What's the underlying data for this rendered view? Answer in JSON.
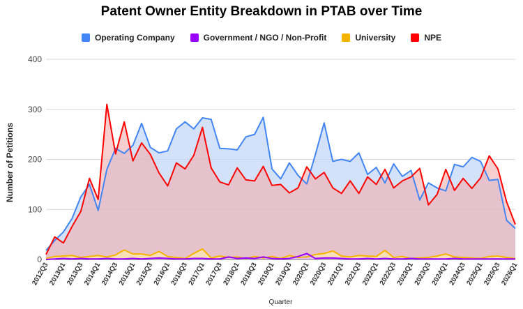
{
  "chart_data": {
    "type": "line",
    "title": "Patent Owner Entity Breakdown in PTAB over Time",
    "xlabel": "Quarter",
    "ylabel": "Number of Petitions",
    "ylim": [
      0,
      400
    ],
    "yticks": [
      0,
      100,
      200,
      300,
      400
    ],
    "grid": true,
    "legend_position": "top",
    "x": [
      "2012Q3",
      "2012Q4",
      "2013Q1",
      "2013Q2",
      "2013Q3",
      "2013Q4",
      "2014Q1",
      "2014Q2",
      "2014Q3",
      "2014Q4",
      "2015Q1",
      "2015Q2",
      "2015Q3",
      "2015Q4",
      "2016Q1",
      "2016Q2",
      "2016Q3",
      "2016Q4",
      "2017Q1",
      "2017Q2",
      "2017Q3",
      "2017Q4",
      "2018Q1",
      "2018Q2",
      "2018Q3",
      "2018Q4",
      "2019Q1",
      "2019Q2",
      "2019Q3",
      "2019Q4",
      "2020Q1",
      "2020Q2",
      "2020Q3",
      "2020Q4",
      "2021Q1",
      "2021Q2",
      "2021Q3",
      "2021Q4",
      "2022Q1",
      "2022Q2",
      "2022Q3",
      "2022Q4",
      "2023Q1",
      "2023Q2",
      "2023Q3",
      "2023Q4",
      "2024Q1",
      "2024Q2",
      "2024Q3",
      "2024Q4",
      "2025Q1",
      "2025Q2",
      "2025Q3",
      "2025Q4",
      "2026Q1"
    ],
    "x_tick_labels": [
      "2012Q3",
      "2013Q1",
      "2013Q3",
      "2014Q1",
      "2014Q3",
      "2015Q1",
      "2015Q3",
      "2016Q1",
      "2016Q3",
      "2017Q1",
      "2017Q3",
      "2018Q1",
      "2018Q3",
      "2019Q1",
      "2019Q3",
      "2020Q1",
      "2020Q3",
      "2021Q1",
      "2021Q3",
      "2022Q1",
      "2022Q3",
      "2023Q1",
      "2023Q3",
      "2024Q1",
      "2024Q3",
      "2025Q1",
      "2025Q3",
      "2026Q1"
    ],
    "series": [
      {
        "name": "Operating Company",
        "color": "#4285f4",
        "fill": "#c6d8f7",
        "values": [
          18,
          38,
          55,
          82,
          125,
          150,
          98,
          180,
          222,
          212,
          228,
          272,
          224,
          213,
          217,
          261,
          275,
          261,
          283,
          280,
          222,
          221,
          219,
          245,
          250,
          284,
          181,
          161,
          193,
          168,
          151,
          210,
          273,
          196,
          200,
          196,
          213,
          170,
          184,
          153,
          191,
          166,
          178,
          119,
          153,
          143,
          137,
          190,
          185,
          204,
          196,
          158,
          160,
          78,
          62
        ]
      },
      {
        "name": "Government / NGO / Non-Profit",
        "color": "#9900ff",
        "fill": "#d9b3ff",
        "values": [
          0,
          1,
          2,
          1,
          2,
          1,
          1,
          2,
          1,
          1,
          2,
          1,
          2,
          3,
          2,
          1,
          1,
          2,
          2,
          1,
          1,
          5,
          2,
          3,
          2,
          5,
          2,
          1,
          2,
          6,
          12,
          2,
          3,
          3,
          2,
          1,
          1,
          2,
          1,
          2,
          1,
          1,
          2,
          1,
          1,
          1,
          1,
          2,
          1,
          1,
          1,
          1,
          1,
          1,
          1
        ]
      },
      {
        "name": "University",
        "color": "#f4b400",
        "fill": "#fce8b2",
        "values": [
          2,
          6,
          7,
          8,
          4,
          6,
          8,
          5,
          9,
          19,
          11,
          11,
          8,
          16,
          6,
          4,
          2,
          12,
          21,
          3,
          7,
          4,
          5,
          2,
          6,
          3,
          6,
          2,
          8,
          4,
          5,
          10,
          12,
          17,
          7,
          5,
          8,
          7,
          6,
          18,
          4,
          6,
          2,
          3,
          4,
          7,
          11,
          5,
          4,
          3,
          2,
          6,
          7,
          4,
          2
        ]
      },
      {
        "name": "NPE",
        "color": "#ff0000",
        "fill": "#f2a8a8",
        "values": [
          10,
          45,
          33,
          66,
          96,
          162,
          120,
          310,
          211,
          275,
          197,
          233,
          210,
          173,
          147,
          193,
          181,
          208,
          264,
          183,
          155,
          149,
          183,
          159,
          157,
          186,
          148,
          150,
          133,
          143,
          185,
          161,
          174,
          143,
          132,
          157,
          132,
          165,
          150,
          180,
          143,
          157,
          165,
          182,
          109,
          130,
          180,
          138,
          162,
          142,
          163,
          207,
          181,
          115,
          70
        ]
      }
    ]
  }
}
